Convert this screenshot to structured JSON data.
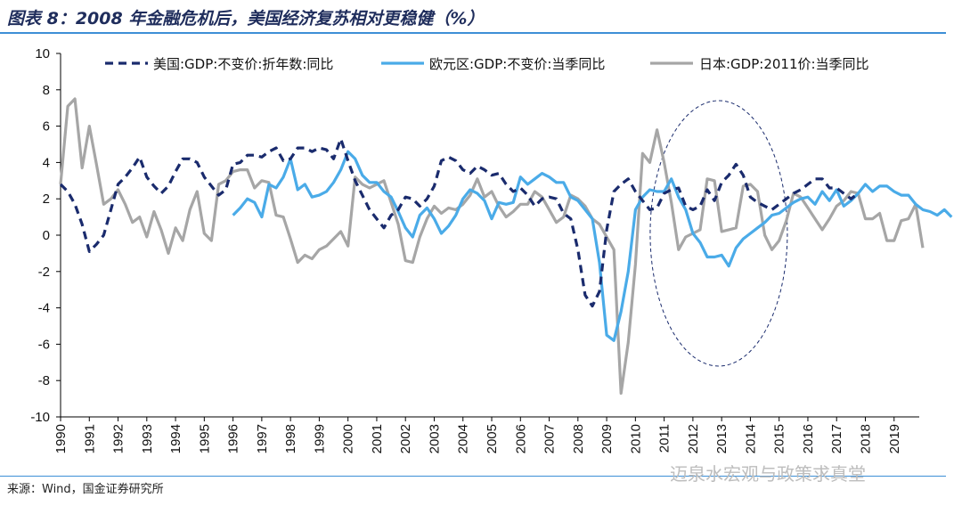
{
  "title": "图表 8：2008 年金融危机后，美国经济复苏相对更稳健（%）",
  "source": "来源：Wind，国金证券研究所",
  "watermark": "迈泉水宏观与政策求真堂",
  "chart_data": {
    "type": "line",
    "title": "",
    "xlabel": "",
    "ylabel": "",
    "ylim": [
      -10,
      10
    ],
    "yticks": [
      -10,
      -8,
      -6,
      -4,
      -2,
      0,
      2,
      4,
      6,
      8,
      10
    ],
    "x_start": 1990.0,
    "x_step": 0.25,
    "xlim": [
      1990,
      2019.875
    ],
    "xtick_labels": [
      "1990",
      "1991",
      "1992",
      "1993",
      "1994",
      "1995",
      "1996",
      "1997",
      "1998",
      "1999",
      "2000",
      "2001",
      "2002",
      "2003",
      "2004",
      "2005",
      "2006",
      "2007",
      "2008",
      "2009",
      "2010",
      "2011",
      "2012",
      "2013",
      "2014",
      "2015",
      "2016",
      "2017",
      "2018",
      "2019"
    ],
    "grid": false,
    "legend_position": "top",
    "annotation": "dashed-ellipse highlighting 2011-2014",
    "series": [
      {
        "name": "美国:GDP:不变价:折年数:同比",
        "color": "#1a2b6d",
        "style": "dashed",
        "start": 1990.0,
        "values": [
          2.8,
          2.4,
          1.7,
          0.6,
          -0.9,
          -0.5,
          0.0,
          1.4,
          2.8,
          3.2,
          3.7,
          4.3,
          3.2,
          2.7,
          2.3,
          2.7,
          3.5,
          4.2,
          4.2,
          4.0,
          3.2,
          2.7,
          2.2,
          2.5,
          3.9,
          4.0,
          4.4,
          4.4,
          4.3,
          4.6,
          4.8,
          4.1,
          4.2,
          4.8,
          4.8,
          4.6,
          4.8,
          4.7,
          4.2,
          5.3,
          4.1,
          3.0,
          2.2,
          1.4,
          0.9,
          0.4,
          1.1,
          1.4,
          2.1,
          2.0,
          1.6,
          2.0,
          2.7,
          4.1,
          4.3,
          4.1,
          3.6,
          3.4,
          3.8,
          3.6,
          3.3,
          3.4,
          2.8,
          2.4,
          2.6,
          2.2,
          1.6,
          2.0,
          2.1,
          2.0,
          1.2,
          0.9,
          -0.8,
          -3.3,
          -3.9,
          -3.1,
          0.3,
          2.4,
          2.8,
          3.1,
          2.4,
          1.9,
          1.4,
          1.5,
          2.3,
          2.5,
          2.6,
          1.6,
          1.4,
          1.6,
          2.5,
          1.9,
          2.9,
          3.3,
          3.9,
          3.3,
          2.1,
          1.8,
          1.6,
          1.4,
          1.7,
          2.0,
          2.3,
          2.5,
          2.8,
          3.1,
          3.1,
          2.6,
          2.6,
          2.3,
          2.0,
          2.3
        ]
      },
      {
        "name": "欧元区:GDP:不变价:当季同比",
        "color": "#4aabe8",
        "style": "solid",
        "start": 1996.0,
        "values": [
          1.1,
          1.5,
          2.0,
          1.8,
          1.0,
          2.8,
          2.6,
          3.2,
          4.2,
          2.5,
          2.8,
          2.1,
          2.2,
          2.4,
          2.9,
          3.6,
          4.6,
          4.2,
          3.3,
          2.9,
          2.9,
          2.4,
          2.1,
          1.3,
          0.4,
          -0.1,
          1.1,
          1.5,
          0.9,
          0.1,
          0.5,
          1.1,
          2.0,
          2.5,
          2.3,
          1.9,
          0.9,
          1.8,
          1.7,
          1.8,
          3.2,
          2.8,
          3.1,
          3.4,
          3.2,
          2.9,
          2.9,
          2.1,
          1.9,
          1.4,
          0.9,
          -1.5,
          -5.5,
          -5.8,
          -4.2,
          -2.0,
          1.4,
          2.1,
          2.5,
          2.4,
          2.4,
          3.1,
          2.1,
          1.4,
          0.1,
          -0.4,
          -1.2,
          -1.2,
          -1.1,
          -1.7,
          -0.7,
          -0.2,
          0.1,
          0.4,
          0.7,
          1.1,
          1.2,
          1.5,
          1.8,
          2.0,
          2.1,
          1.7,
          2.4,
          1.9,
          2.5,
          1.6,
          1.9,
          2.3,
          2.8,
          2.4,
          2.7,
          2.7,
          2.4,
          2.2,
          2.2,
          1.7,
          1.4,
          1.3,
          1.1,
          1.4,
          1.0
        ]
      },
      {
        "name": "日本:GDP:2011价:当季同比",
        "color": "#a6a6a6",
        "style": "solid",
        "start": 1990.0,
        "values": [
          2.8,
          7.1,
          7.5,
          3.7,
          6.0,
          3.9,
          1.7,
          2.0,
          2.5,
          1.7,
          0.7,
          1.0,
          -0.1,
          1.3,
          0.3,
          -1.0,
          0.4,
          -0.3,
          1.4,
          2.4,
          0.1,
          -0.3,
          2.8,
          3.0,
          3.5,
          3.6,
          3.6,
          2.6,
          3.0,
          2.9,
          1.1,
          1.0,
          -0.2,
          -1.5,
          -1.1,
          -1.3,
          -0.8,
          -0.6,
          -0.2,
          0.2,
          -0.6,
          3.2,
          2.8,
          2.6,
          2.8,
          3.0,
          1.8,
          0.6,
          -1.4,
          -1.5,
          -0.1,
          0.9,
          1.6,
          1.2,
          1.5,
          1.4,
          1.7,
          2.2,
          3.1,
          2.1,
          2.4,
          1.6,
          1.0,
          1.3,
          1.7,
          1.7,
          2.4,
          2.1,
          1.4,
          0.7,
          1.0,
          2.2,
          2.0,
          1.6,
          0.9,
          0.6,
          -0.1,
          -0.8,
          -8.7,
          -5.9,
          -1.6,
          4.5,
          4.0,
          5.8,
          4.0,
          1.8,
          -0.8,
          -0.1,
          0.1,
          0.3,
          3.1,
          3.0,
          0.2,
          0.3,
          0.4,
          2.7,
          2.8,
          2.4,
          0.0,
          -0.8,
          -0.3,
          0.8,
          2.3,
          2.1,
          1.5,
          0.9,
          0.3,
          0.9,
          1.6,
          1.9,
          2.4,
          2.3,
          0.9,
          0.9,
          1.2,
          -0.3,
          -0.3,
          0.8,
          0.9,
          1.7,
          -0.7
        ]
      }
    ]
  }
}
